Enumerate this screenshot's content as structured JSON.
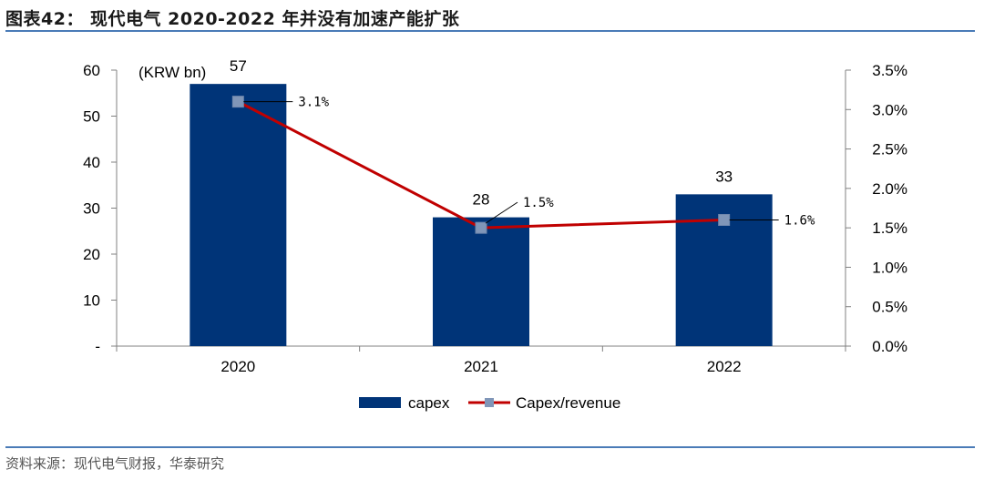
{
  "title": "图表42： 现代电气 2020-2022 年并没有加速产能扩张",
  "source": "资料来源：现代电气财报，华泰研究",
  "chart_data": {
    "type": "bar",
    "categories": [
      "2020",
      "2021",
      "2022"
    ],
    "unit_label": "(KRW bn)",
    "series": [
      {
        "name": "capex",
        "kind": "bar",
        "axis": "left",
        "values": [
          57,
          28,
          33
        ],
        "labels": [
          "57",
          "28",
          "33"
        ],
        "color": "#003478"
      },
      {
        "name": "Capex/revenue",
        "kind": "line",
        "axis": "right",
        "values": [
          3.1,
          1.5,
          1.6
        ],
        "labels": [
          "3.1%",
          "1.5%",
          "1.6%"
        ],
        "color": "#c00000",
        "marker_color": "#8096b8"
      }
    ],
    "left_axis": {
      "range": [
        0,
        60
      ],
      "ticks": [
        0,
        10,
        20,
        30,
        40,
        50,
        60
      ],
      "tick_labels": [
        "-",
        "10",
        "20",
        "30",
        "40",
        "50",
        "60"
      ]
    },
    "right_axis": {
      "range": [
        0,
        3.5
      ],
      "ticks": [
        0,
        0.5,
        1,
        1.5,
        2,
        2.5,
        3,
        3.5
      ],
      "tick_labels": [
        "0.0%",
        "0.5%",
        "1.0%",
        "1.5%",
        "2.0%",
        "2.5%",
        "3.0%",
        "3.5%"
      ]
    },
    "legend": [
      "capex",
      "Capex/revenue"
    ],
    "legend_position": "bottom",
    "grid": false
  }
}
